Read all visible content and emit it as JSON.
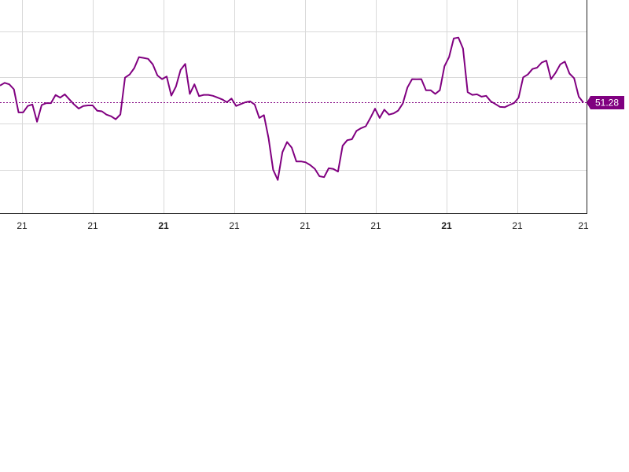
{
  "chart_data": {
    "type": "line",
    "title": "",
    "xlabel": "",
    "ylabel": "",
    "x_tick_labels": [
      {
        "text": "21",
        "bold": false
      },
      {
        "text": "21",
        "bold": false
      },
      {
        "text": "21",
        "bold": true
      },
      {
        "text": "21",
        "bold": false
      },
      {
        "text": "21",
        "bold": false
      },
      {
        "text": "21",
        "bold": false
      },
      {
        "text": "21",
        "bold": true
      },
      {
        "text": "21",
        "bold": false
      },
      {
        "text": "21",
        "bold": false
      }
    ],
    "ylim": [
      0,
      100
    ],
    "grid": true,
    "last_value": 51.28,
    "last_value_label": "51.28",
    "colors": {
      "series": "#800080",
      "badge": "#800080",
      "grid": "#d9d9d9",
      "axis": "#222222"
    },
    "series": [
      {
        "values": [
          60.5,
          62.0,
          61.2,
          58.5,
          46.0,
          46.0,
          49.5,
          50.3,
          41.0,
          50.0,
          51.0,
          51.0,
          55.4,
          54.0,
          55.8,
          53.0,
          50.3,
          48.1,
          49.5,
          49.8,
          49.8,
          46.9,
          46.6,
          44.8,
          43.9,
          42.3,
          44.9,
          64.8,
          66.5,
          70.0,
          75.9,
          75.5,
          75.0,
          72.0,
          66.0,
          64.0,
          65.4,
          55.1,
          60.0,
          69.0,
          72.2,
          56.0,
          61.2,
          54.8,
          55.5,
          55.5,
          55.0,
          54.0,
          53.0,
          51.5,
          53.5,
          49.5,
          50.5,
          51.5,
          52.0,
          50.3,
          43.0,
          44.5,
          32.0,
          15.0,
          9.5,
          24.5,
          30.0,
          27.0,
          19.5,
          19.5,
          19.0,
          17.5,
          15.5,
          11.5,
          11.0,
          15.8,
          15.4,
          14.0,
          28.0,
          31.0,
          31.5,
          36.0,
          37.5,
          38.5,
          43.0,
          48.0,
          43.0,
          47.5,
          44.8,
          45.5,
          47.0,
          50.8,
          59.5,
          64.0,
          63.9,
          64.0,
          58.0,
          58.0,
          56.0,
          58.0,
          71.0,
          76.0,
          86.0,
          86.5,
          80.5,
          57.0,
          55.5,
          55.8,
          54.5,
          55.0,
          52.0,
          50.5,
          49.0,
          48.8,
          50.0,
          51.0,
          54.0,
          65.0,
          66.5,
          69.5,
          70.2,
          73.0,
          74.0,
          64.0,
          67.5,
          72.0,
          73.5,
          67.0,
          64.5,
          54.5,
          51.3
        ]
      }
    ]
  }
}
